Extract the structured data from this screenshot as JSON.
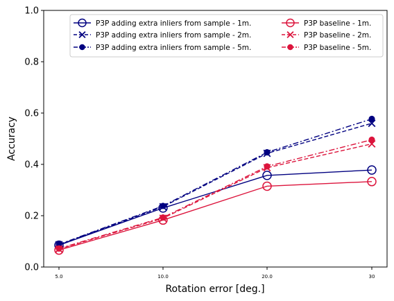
{
  "chart_data": {
    "type": "line",
    "title": "",
    "xlabel": "Rotation error [deg.]",
    "ylabel": "Accuracy",
    "categories": [
      "5.0",
      "10.0",
      "20.0",
      "30"
    ],
    "ylim": [
      0,
      1.0
    ],
    "yticks": [
      "0.0",
      "0.2",
      "0.4",
      "0.6",
      "0.8",
      "1.0"
    ],
    "grid": false,
    "legend_placement": "top-right",
    "legend_columns": 2,
    "series": [
      {
        "name": "P3P adding extra inliers from sample - 1m.",
        "values": [
          0.085,
          0.23,
          0.357,
          0.378
        ],
        "color": "#000080",
        "dash": "solid",
        "marker": "circle-open"
      },
      {
        "name": "P3P adding extra inliers from sample - 2m.",
        "values": [
          0.087,
          0.235,
          0.443,
          0.56
        ],
        "color": "#000080",
        "dash": "dashed",
        "marker": "x"
      },
      {
        "name": "P3P adding extra inliers from sample - 5m.",
        "values": [
          0.088,
          0.238,
          0.447,
          0.577
        ],
        "color": "#000080",
        "dash": "dashdot",
        "marker": "circle-filled"
      },
      {
        "name": "P3P baseline - 1m.",
        "values": [
          0.066,
          0.183,
          0.315,
          0.333
        ],
        "color": "#dc143c",
        "dash": "solid",
        "marker": "circle-open"
      },
      {
        "name": "P3P baseline - 2m.",
        "values": [
          0.07,
          0.19,
          0.387,
          0.48
        ],
        "color": "#dc143c",
        "dash": "dashed",
        "marker": "x"
      },
      {
        "name": "P3P baseline - 5m.",
        "values": [
          0.072,
          0.193,
          0.392,
          0.496
        ],
        "color": "#dc143c",
        "dash": "dashdot",
        "marker": "circle-filled"
      }
    ]
  }
}
